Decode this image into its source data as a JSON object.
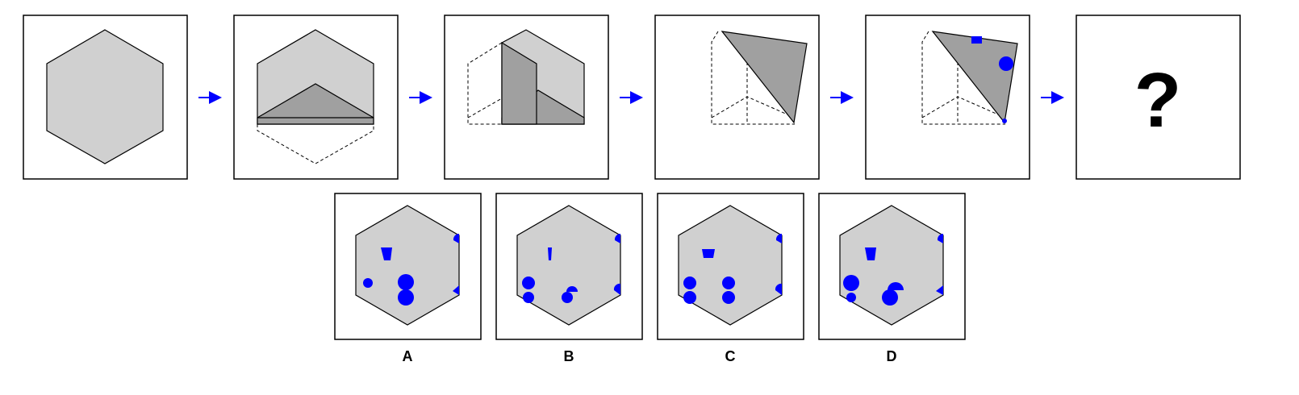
{
  "colors": {
    "paper": "#d0d0d0",
    "fold": "#a0a0a0",
    "hole": "#0000ff",
    "arrow": "#0000ff",
    "outline": "#000000",
    "frame_bg": "#ffffff"
  },
  "question_mark": "?",
  "option_labels": [
    "A",
    "B",
    "C",
    "D"
  ],
  "steps": [
    {
      "name": "step-1-flat-hexagon"
    },
    {
      "name": "step-2-fold-bottom-up"
    },
    {
      "name": "step-3-fold-left-over"
    },
    {
      "name": "step-4-fold-diagonal"
    },
    {
      "name": "step-5-punch-holes"
    },
    {
      "name": "step-6-question"
    }
  ]
}
